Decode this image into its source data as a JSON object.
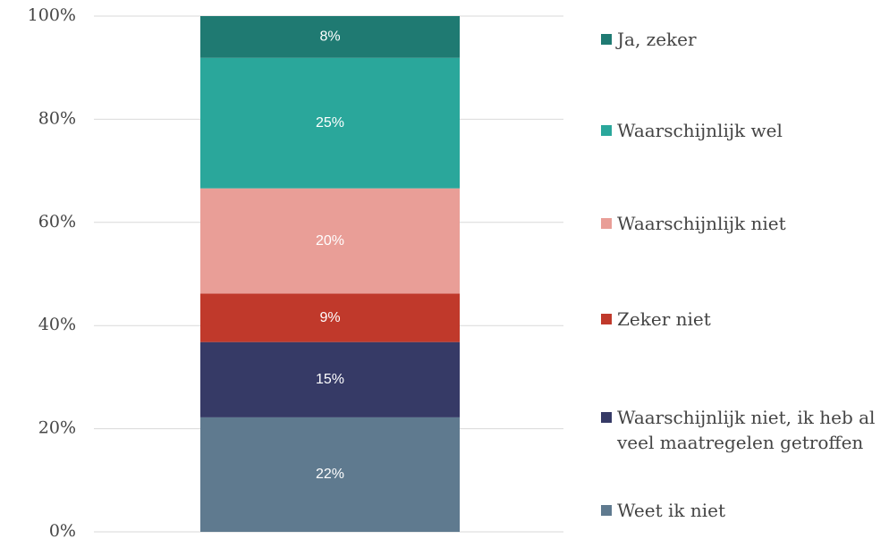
{
  "chart_data": {
    "type": "stacked_bar",
    "categories": [
      null
    ],
    "series": [
      {
        "name": "Weet ik niet",
        "color": "#5f7a8f",
        "values": [
          22.2
        ],
        "value_labels": [
          "22%"
        ]
      },
      {
        "name": "Waarschijnlijk niet, ik heb al veel maatregelen getroffen",
        "color": "#363a66",
        "values": [
          14.6
        ],
        "value_labels": [
          "15%"
        ]
      },
      {
        "name": "Zeker niet",
        "color": "#c0392b",
        "values": [
          9.4
        ],
        "value_labels": [
          "9%"
        ]
      },
      {
        "name": "Waarschijnlijk niet",
        "color": "#e99e97",
        "values": [
          20.4
        ],
        "value_labels": [
          "20%"
        ]
      },
      {
        "name": "Waarschijnlijk wel",
        "color": "#2aa79b",
        "values": [
          25.3
        ],
        "value_labels": [
          "25%"
        ]
      },
      {
        "name": "Ja, zeker",
        "color": "#1f7a72",
        "values": [
          8.1
        ],
        "value_labels": [
          "8%"
        ]
      }
    ],
    "ylim": [
      0,
      100
    ],
    "yticks": [
      {
        "value": 0,
        "label": "0%"
      },
      {
        "value": 20,
        "label": "20%"
      },
      {
        "value": 40,
        "label": "40%"
      },
      {
        "value": 60,
        "label": "60%"
      },
      {
        "value": 80,
        "label": "80%"
      },
      {
        "value": 100,
        "label": "100%"
      }
    ],
    "grid": true,
    "legend": "right"
  }
}
